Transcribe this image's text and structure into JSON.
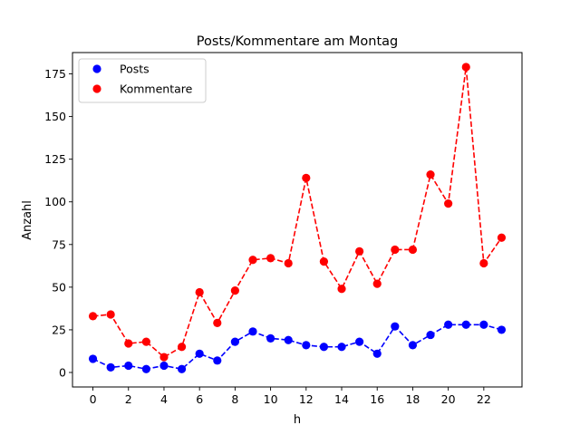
{
  "chart_data": {
    "type": "line",
    "title": "Posts/Kommentare am Montag",
    "xlabel": "h",
    "ylabel": "Anzahl",
    "x": [
      0,
      1,
      2,
      3,
      4,
      5,
      6,
      7,
      8,
      9,
      10,
      11,
      12,
      13,
      14,
      15,
      16,
      17,
      18,
      19,
      20,
      21,
      22,
      23
    ],
    "xticks": [
      "0",
      "2",
      "4",
      "6",
      "8",
      "10",
      "12",
      "14",
      "16",
      "18",
      "20",
      "22"
    ],
    "xtick_values": [
      0,
      2,
      4,
      6,
      8,
      10,
      12,
      14,
      16,
      18,
      20,
      22
    ],
    "yticks": [
      "0",
      "25",
      "50",
      "75",
      "100",
      "125",
      "150",
      "175"
    ],
    "ytick_values": [
      0,
      25,
      50,
      75,
      100,
      125,
      150,
      175
    ],
    "xlim": [
      -1.15,
      24.15
    ],
    "ylim": [
      -8.5,
      187.5
    ],
    "grid": false,
    "legend_position": "top-left",
    "series": [
      {
        "name": "Posts",
        "color": "#0000ff",
        "values": [
          8,
          3,
          4,
          2,
          4,
          2,
          11,
          7,
          18,
          24,
          20,
          19,
          16,
          15,
          15,
          18,
          11,
          27,
          16,
          22,
          28,
          28,
          28,
          25
        ]
      },
      {
        "name": "Kommentare",
        "color": "#ff0000",
        "values": [
          33,
          34,
          17,
          18,
          9,
          15,
          47,
          29,
          48,
          66,
          67,
          64,
          114,
          65,
          49,
          71,
          52,
          72,
          72,
          116,
          99,
          179,
          64,
          79
        ]
      }
    ]
  }
}
